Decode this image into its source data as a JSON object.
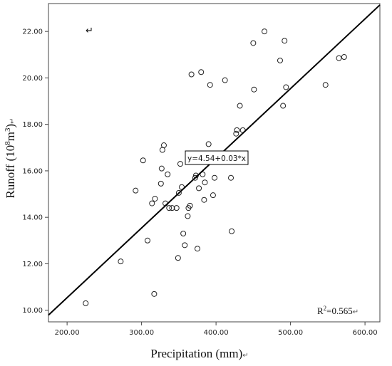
{
  "chart_data": {
    "type": "scatter",
    "xlabel": "Precipitation (mm)",
    "ylabel_main": "Runoff (10",
    "ylabel_sup": "8",
    "ylabel_unit": "m",
    "ylabel_sup2": "3",
    "ylabel_close": ")",
    "xlim": [
      175,
      620
    ],
    "ylim": [
      9.5,
      23.2
    ],
    "xticks": [
      200,
      300,
      400,
      500,
      600
    ],
    "xtick_labels": [
      "200.00",
      "300.00",
      "400.00",
      "500.00",
      "600.00"
    ],
    "yticks": [
      10,
      12,
      14,
      16,
      18,
      20,
      22
    ],
    "ytick_labels": [
      "10.00",
      "12.00",
      "14.00",
      "16.00",
      "18.00",
      "20.00",
      "22.00"
    ],
    "grid": false,
    "legend": "none",
    "fit_line": {
      "intercept": 4.54,
      "slope": 0.03,
      "label": "y=4.54+0.03*x"
    },
    "r2_label_main": "R",
    "r2_label_sup": "2",
    "r2_label_rest": "=0.565",
    "return_mark": "↵",
    "points": {
      "x": [
        225,
        272,
        292,
        302,
        308,
        314,
        317,
        318,
        326,
        327,
        328,
        330,
        332,
        335,
        337,
        341,
        347,
        349,
        350,
        352,
        354,
        356,
        358,
        362,
        363,
        365,
        367,
        372,
        373,
        375,
        377,
        380,
        382,
        384,
        385,
        390,
        392,
        396,
        398,
        412,
        420,
        421,
        427,
        428,
        432,
        436,
        450,
        451,
        465,
        486,
        490,
        492,
        494,
        547,
        565,
        572
      ],
      "y": [
        10.3,
        12.1,
        15.15,
        16.45,
        13.0,
        14.6,
        10.7,
        14.8,
        15.45,
        16.1,
        16.9,
        17.1,
        14.6,
        15.85,
        14.4,
        14.4,
        14.4,
        12.25,
        15.05,
        16.3,
        15.3,
        13.3,
        12.8,
        14.05,
        14.4,
        14.5,
        20.15,
        15.7,
        15.8,
        12.65,
        15.25,
        20.25,
        15.85,
        14.75,
        15.5,
        17.15,
        19.7,
        14.95,
        15.7,
        19.9,
        15.7,
        13.4,
        17.6,
        17.75,
        18.8,
        17.75,
        21.5,
        19.5,
        22.0,
        20.75,
        18.8,
        21.6,
        19.6,
        19.7,
        20.85,
        20.9
      ]
    }
  }
}
